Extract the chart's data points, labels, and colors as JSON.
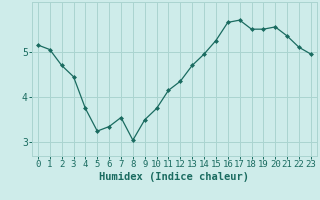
{
  "x": [
    0,
    1,
    2,
    3,
    4,
    5,
    6,
    7,
    8,
    9,
    10,
    11,
    12,
    13,
    14,
    15,
    16,
    17,
    18,
    19,
    20,
    21,
    22,
    23
  ],
  "y": [
    5.15,
    5.05,
    4.7,
    4.45,
    3.75,
    3.25,
    3.35,
    3.55,
    3.05,
    3.5,
    3.75,
    4.15,
    4.35,
    4.7,
    4.95,
    5.25,
    5.65,
    5.7,
    5.5,
    5.5,
    5.55,
    5.35,
    5.1,
    4.95
  ],
  "xlabel": "Humidex (Indice chaleur)",
  "bg_color": "#ceecea",
  "line_color": "#1a6b60",
  "marker_color": "#1a6b60",
  "grid_color": "#aad4d0",
  "tick_color": "#1a6b60",
  "ylim": [
    2.7,
    6.1
  ],
  "yticks": [
    3,
    4,
    5
  ],
  "xticks": [
    0,
    1,
    2,
    3,
    4,
    5,
    6,
    7,
    8,
    9,
    10,
    11,
    12,
    13,
    14,
    15,
    16,
    17,
    18,
    19,
    20,
    21,
    22,
    23
  ],
  "xlabel_fontsize": 7.5,
  "tick_fontsize": 6.5
}
